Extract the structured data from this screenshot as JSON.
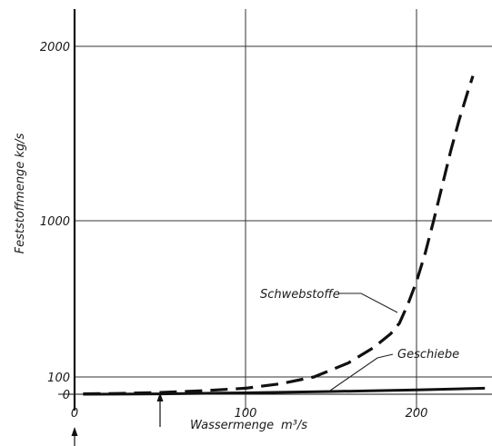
{
  "chart_data": {
    "type": "line",
    "title": "",
    "xlabel": "Wassermenge",
    "xunit": "m³/s",
    "ylabel": "Feststoffmenge kg/s",
    "xlim": [
      0,
      240
    ],
    "ylim": [
      -10,
      2150
    ],
    "x_ticks": [
      "0",
      "100",
      "200"
    ],
    "x_tick_values": [
      0,
      100,
      200
    ],
    "y_ticks": [
      "0",
      "100",
      "1000",
      "2000"
    ],
    "y_tick_values": [
      0,
      100,
      1000,
      2000
    ],
    "grid": true,
    "series": [
      {
        "name": "Schwebstoffe",
        "style": "dashed",
        "x": [
          5,
          25,
          50,
          75,
          100,
          120,
          140,
          160,
          175,
          185,
          190,
          195,
          200,
          205,
          210,
          215,
          220,
          225,
          230,
          233
        ],
        "y": [
          2,
          4,
          10,
          20,
          35,
          60,
          100,
          180,
          270,
          350,
          410,
          520,
          650,
          810,
          1000,
          1200,
          1400,
          1580,
          1740,
          1830
        ]
      },
      {
        "name": "Geschiebe",
        "style": "solid",
        "x": [
          5,
          50,
          100,
          150,
          200,
          240
        ],
        "y": [
          0,
          2,
          8,
          16,
          25,
          35
        ]
      }
    ],
    "annotations": [
      {
        "kind": "arrow",
        "axis": "x",
        "x": 50
      },
      {
        "kind": "arrow",
        "axis": "x",
        "x": 0
      }
    ]
  },
  "text": {
    "series1_label": "Schwebstoffe",
    "series2_label": "Geschiebe",
    "xlabel": "Wassermenge",
    "xunit": "m³/s",
    "ylabel": "Feststoffmenge kg/s"
  }
}
